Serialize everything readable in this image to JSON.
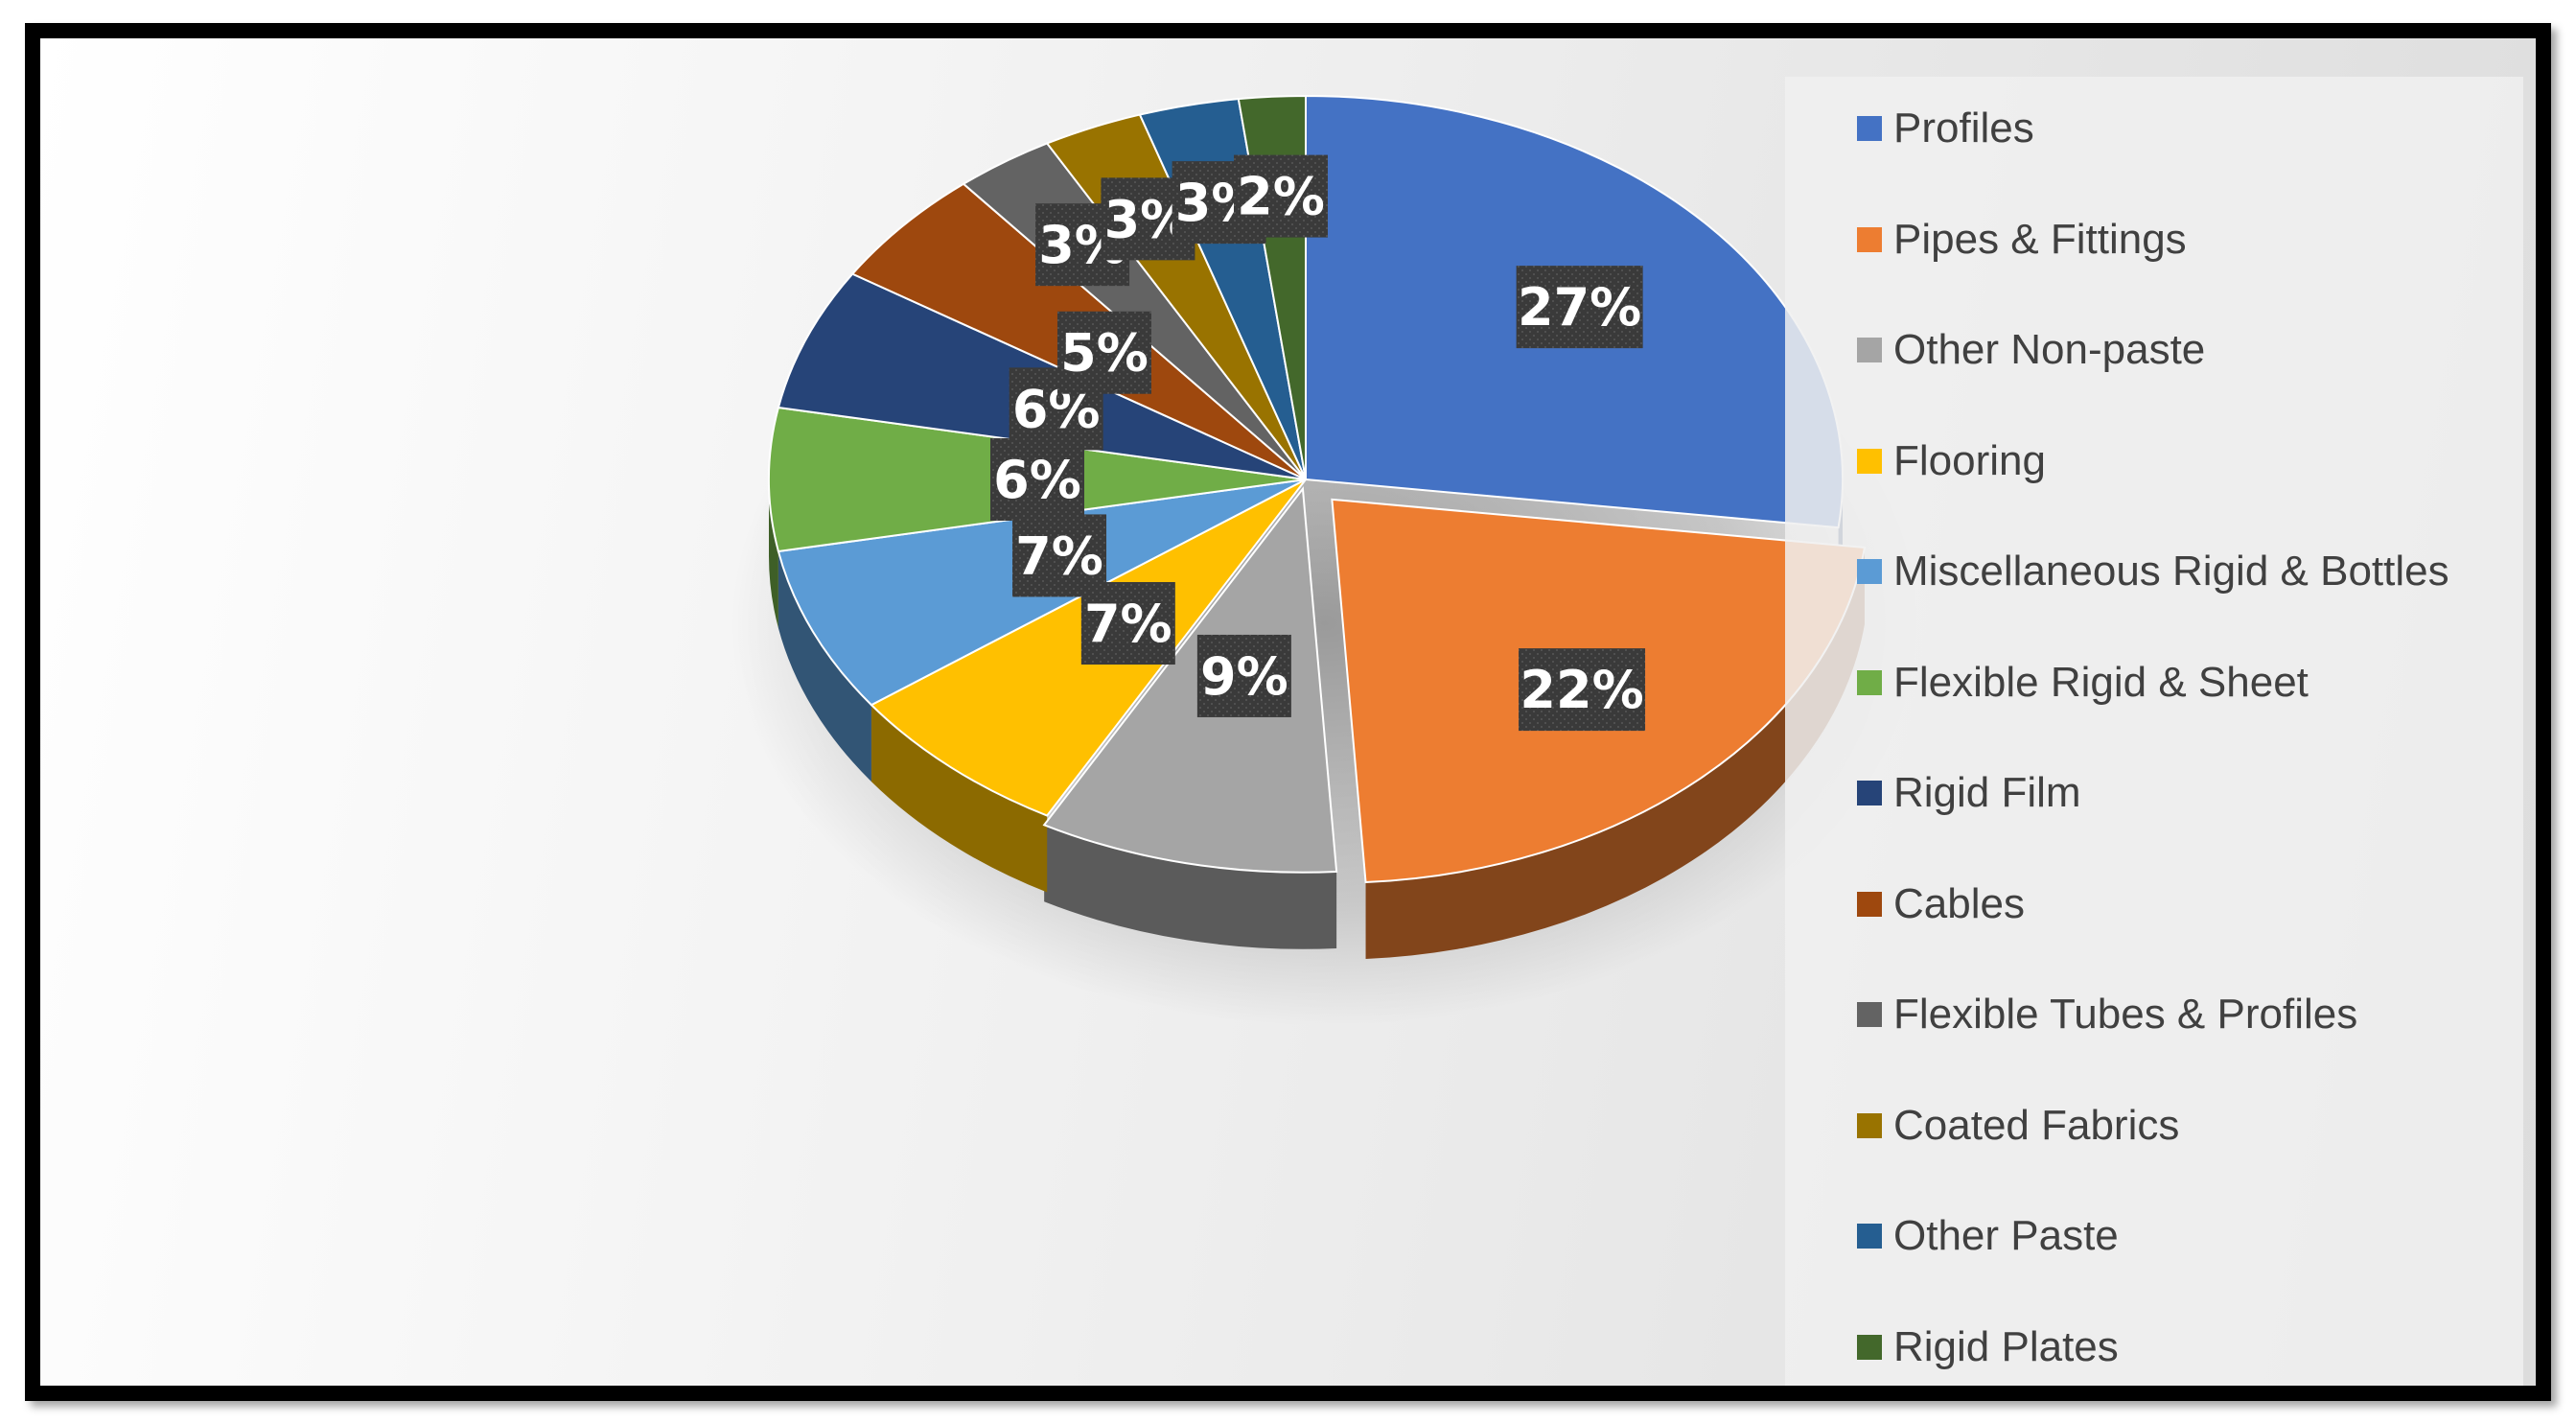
{
  "chart_data": {
    "type": "pie",
    "title": "",
    "legend_position": "right",
    "categories": [
      "Profiles",
      "Pipes & Fittings",
      "Other Non-paste",
      "Flooring",
      "Miscellaneous Rigid & Bottles",
      "Flexible Rigid & Sheet",
      "Rigid Film",
      "Cables",
      "Flexible Tubes & Profiles",
      "Coated Fabrics",
      "Other Paste",
      "Rigid Plates"
    ],
    "values": [
      27,
      22,
      9,
      7,
      7,
      6,
      6,
      5,
      3,
      3,
      3,
      2
    ],
    "data_labels": [
      "27%",
      "22%",
      "9%",
      "7%",
      "7%",
      "6%",
      "6%",
      "5%",
      "3%",
      "3%",
      "3%",
      "2%"
    ],
    "colors": [
      "#4472C4",
      "#ED7D31",
      "#A5A5A5",
      "#FFC000",
      "#5B9BD5",
      "#70AD47",
      "#264478",
      "#9E480E",
      "#636363",
      "#997300",
      "#255E91",
      "#43682B"
    ]
  }
}
